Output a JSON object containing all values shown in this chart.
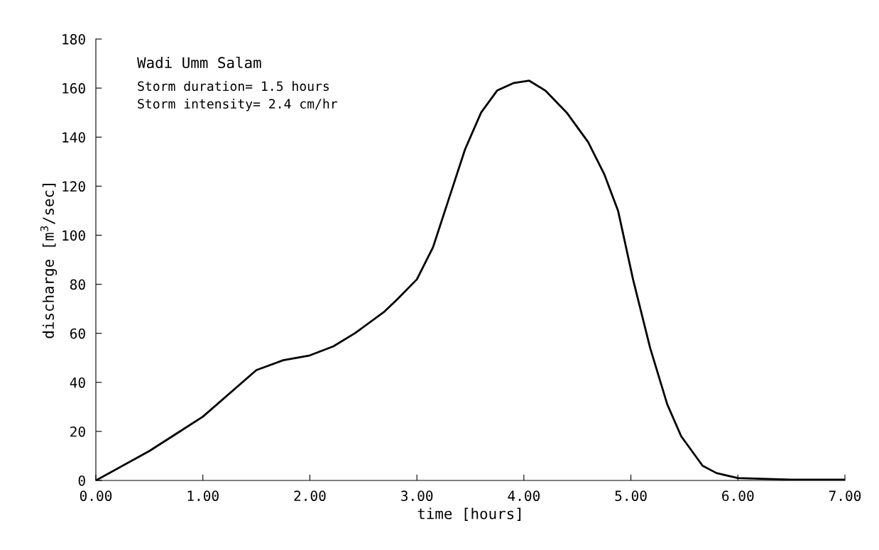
{
  "chart_data": {
    "type": "line",
    "xlabel": "time [hours]",
    "ylabel": "discharge [m$^{3}$/sec]",
    "annotations": [
      "Wadi Umm Salam",
      "Storm duration= 1.5 hours",
      "Storm intensity= 2.4 cm/hr"
    ],
    "x": [
      0,
      0.5,
      1.0,
      1.5,
      1.75,
      2.0,
      2.22,
      2.42,
      2.69,
      2.82,
      3.0,
      3.15,
      3.3,
      3.45,
      3.6,
      3.75,
      3.9,
      4.05,
      4.2,
      4.4,
      4.6,
      4.75,
      4.88,
      5.02,
      5.18,
      5.34,
      5.47,
      5.67,
      5.8,
      6.0,
      6.5,
      7.0
    ],
    "series": [
      {
        "color": "#000000",
        "values": [
          0,
          12,
          26,
          45,
          49,
          51,
          54.7,
          60,
          68.6,
          74,
          82,
          95,
          115,
          135,
          150,
          159,
          162,
          163,
          159,
          150,
          138,
          125,
          110,
          82,
          54,
          31,
          18,
          6,
          3,
          1,
          0.3,
          0.3
        ]
      }
    ],
    "xlim": [
      0,
      7
    ],
    "ylim": [
      0,
      180
    ],
    "xticks": [
      {
        "value": 0,
        "label": "0.00"
      },
      {
        "value": 1,
        "label": "1.00"
      },
      {
        "value": 2,
        "label": "2.00"
      },
      {
        "value": 3,
        "label": "3.00"
      },
      {
        "value": 4,
        "label": "4.00"
      },
      {
        "value": 5,
        "label": "5.00"
      },
      {
        "value": 6,
        "label": "6.00"
      },
      {
        "value": 7,
        "label": "7.00"
      }
    ],
    "yticks": [
      0,
      20,
      40,
      60,
      80,
      100,
      120,
      140,
      160,
      180
    ],
    "grid": false,
    "marker": "none",
    "line_style": "solid"
  }
}
